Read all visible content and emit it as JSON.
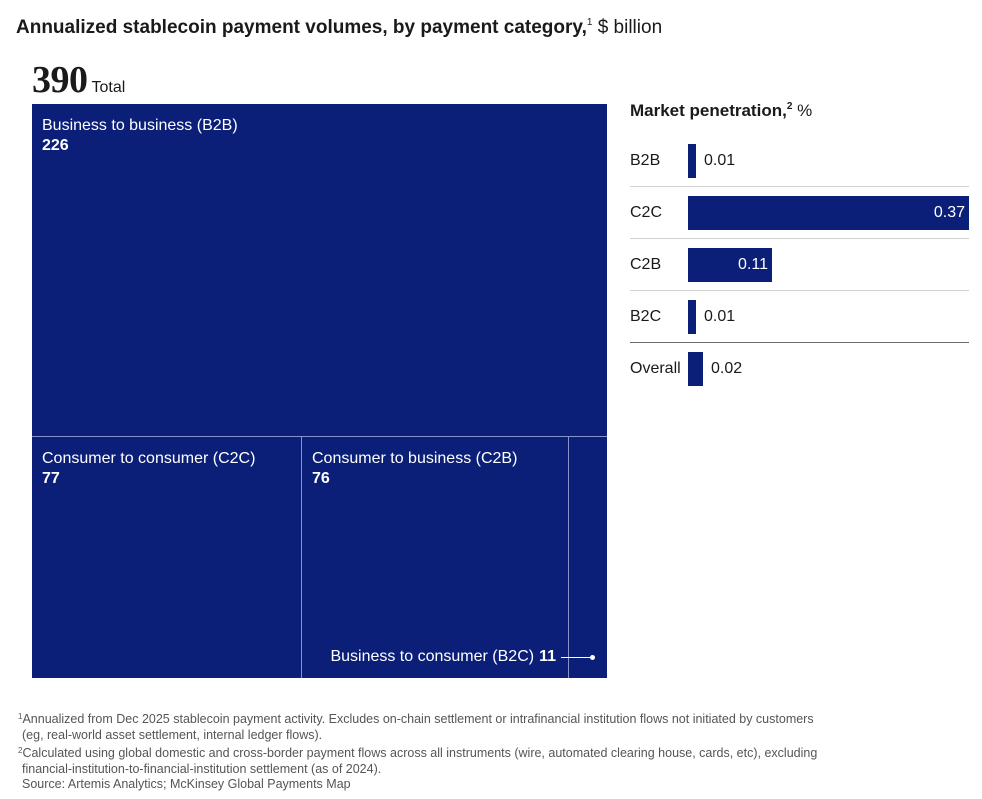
{
  "title": {
    "main": "Annualized stablecoin payment volumes, by payment category,",
    "sup": "1",
    "unit": "$ billion"
  },
  "total": {
    "value": "390",
    "label": "Total"
  },
  "chart_data": [
    {
      "type": "treemap",
      "title": "Annualized stablecoin payment volumes, by payment category, $ billion",
      "total": 390,
      "categories": [
        {
          "label": "Business to business (B2B)",
          "value": 226
        },
        {
          "label": "Consumer to consumer (C2C)",
          "value": 77
        },
        {
          "label": "Consumer to business (C2B)",
          "value": 76
        },
        {
          "label": "Business to consumer (B2C)",
          "value": 11
        }
      ]
    },
    {
      "type": "bar",
      "orientation": "horizontal",
      "title": "Market penetration, %",
      "categories": [
        "B2B",
        "C2C",
        "C2B",
        "B2C",
        "Overall"
      ],
      "values": [
        0.01,
        0.37,
        0.11,
        0.01,
        0.02
      ],
      "xlim": [
        0,
        0.37
      ]
    }
  ],
  "treemap": {
    "b2b": {
      "label": "Business to business (B2B)",
      "value": "226"
    },
    "c2c": {
      "label": "Consumer to consumer (C2C)",
      "value": "77"
    },
    "c2b": {
      "label": "Consumer to business (C2B)",
      "value": "76"
    },
    "b2c": {
      "label": "Business to consumer (B2C)",
      "value": "11"
    }
  },
  "market_penetration": {
    "title": "Market penetration,",
    "sup": "2",
    "unit": "%",
    "rows": [
      {
        "category": "B2B",
        "value": 0.01,
        "label": "0.01"
      },
      {
        "category": "C2C",
        "value": 0.37,
        "label": "0.37"
      },
      {
        "category": "C2B",
        "value": 0.11,
        "label": "0.11"
      },
      {
        "category": "B2C",
        "value": 0.01,
        "label": "0.01"
      },
      {
        "category": "Overall",
        "value": 0.02,
        "label": "0.02"
      }
    ]
  },
  "colors": {
    "navy": "#0b1f78"
  },
  "footnotes": {
    "fn1_sup": "1",
    "fn1_line1": "Annualized from Dec 2025 stablecoin payment activity. Excludes on-chain settlement or intrafinancial institution flows not initiated by customers",
    "fn1_line2": "(eg, real-world asset settlement, internal ledger flows).",
    "fn2_sup": "2",
    "fn2_line1": "Calculated using global domestic and cross-border payment flows across all instruments (wire, automated clearing house, cards, etc), excluding",
    "fn2_line2": "financial-institution-to-financial-institution settlement (as of 2024).",
    "source": "Source: Artemis Analytics; McKinsey Global Payments Map"
  }
}
